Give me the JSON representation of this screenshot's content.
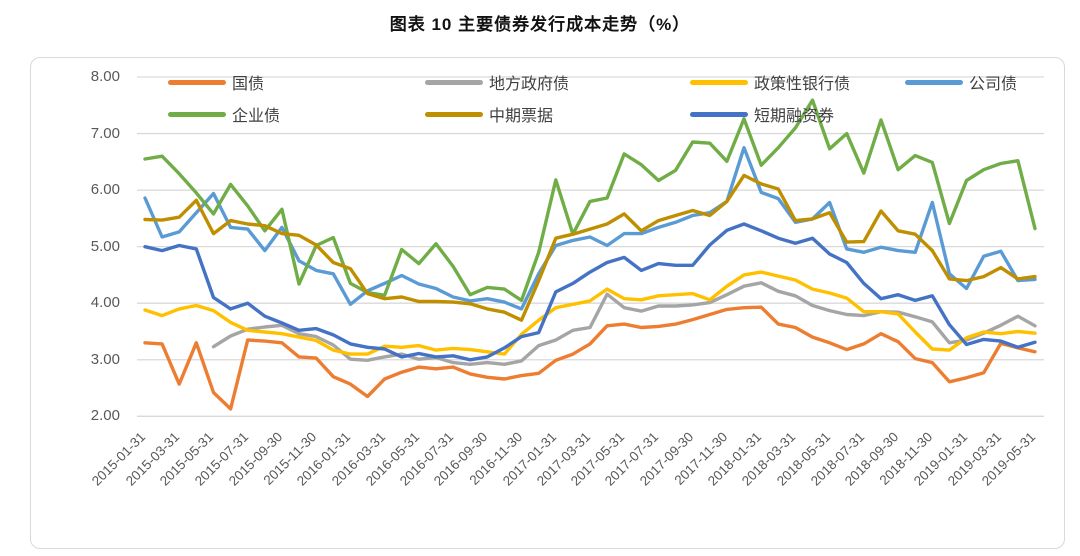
{
  "title": "图表 10 主要债券发行成本走势（%）",
  "legend": {
    "items": [
      {
        "label": "国债",
        "series_index": 0,
        "row": 0,
        "col": 0
      },
      {
        "label": "地方政府债",
        "series_index": 1,
        "row": 0,
        "col": 1
      },
      {
        "label": "政策性银行债",
        "series_index": 2,
        "row": 0,
        "col": 2
      },
      {
        "label": "公司债",
        "series_index": 3,
        "row": 0,
        "col": 3
      },
      {
        "label": "企业债",
        "series_index": 4,
        "row": 1,
        "col": 0
      },
      {
        "label": "中期票据",
        "series_index": 5,
        "row": 1,
        "col": 1
      },
      {
        "label": "短期融资券",
        "series_index": 6,
        "row": 1,
        "col": 2
      }
    ]
  },
  "axes": {
    "y_ticks": [
      "8.00",
      "7.00",
      "6.00",
      "5.00",
      "4.00",
      "3.00",
      "2.00"
    ],
    "y_range": [
      2,
      8
    ],
    "x_tick_labels": [
      "2015-01-31",
      "2015-03-31",
      "2015-05-31",
      "2015-07-31",
      "2015-09-30",
      "2015-11-30",
      "2016-01-31",
      "2016-03-31",
      "2016-05-31",
      "2016-07-31",
      "2016-09-30",
      "2016-11-30",
      "2017-01-31",
      "2017-03-31",
      "2017-05-31",
      "2017-07-31",
      "2017-09-30",
      "2017-11-30",
      "2018-01-31",
      "2018-03-31",
      "2018-05-31",
      "2018-07-31",
      "2018-09-30",
      "2018-11-30",
      "2019-01-31",
      "2019-03-31",
      "2019-05-31"
    ],
    "gridline_color": "#d9d9d9"
  },
  "chart_data": {
    "type": "line",
    "title": "图表 10 主要债券发行成本走势（%）",
    "ylim": [
      2,
      8
    ],
    "grid": "horizontal",
    "legend_position": "top",
    "x_months": [
      "2015-01",
      "2015-02",
      "2015-03",
      "2015-04",
      "2015-05",
      "2015-06",
      "2015-07",
      "2015-08",
      "2015-09",
      "2015-10",
      "2015-11",
      "2015-12",
      "2016-01",
      "2016-02",
      "2016-03",
      "2016-04",
      "2016-05",
      "2016-06",
      "2016-07",
      "2016-08",
      "2016-09",
      "2016-10",
      "2016-11",
      "2016-12",
      "2017-01",
      "2017-02",
      "2017-03",
      "2017-04",
      "2017-05",
      "2017-06",
      "2017-07",
      "2017-08",
      "2017-09",
      "2017-10",
      "2017-11",
      "2017-12",
      "2018-01",
      "2018-02",
      "2018-03",
      "2018-04",
      "2018-05",
      "2018-06",
      "2018-07",
      "2018-08",
      "2018-09",
      "2018-10",
      "2018-11",
      "2018-12",
      "2019-01",
      "2019-02",
      "2019-03",
      "2019-04",
      "2019-05"
    ],
    "series": [
      {
        "name": "国债",
        "color": "#ED7D31",
        "values": [
          3.3,
          3.28,
          2.57,
          3.3,
          2.42,
          2.13,
          3.35,
          3.33,
          3.3,
          3.05,
          3.03,
          2.7,
          2.57,
          2.35,
          2.66,
          2.78,
          2.87,
          2.84,
          2.87,
          2.75,
          2.69,
          2.66,
          2.72,
          2.76,
          2.99,
          3.1,
          3.28,
          3.6,
          3.63,
          3.57,
          3.59,
          3.63,
          3.71,
          3.8,
          3.89,
          3.92,
          3.93,
          3.63,
          3.57,
          3.4,
          3.3,
          3.18,
          3.28,
          3.46,
          3.32,
          3.02,
          2.95,
          2.61,
          2.68,
          2.77,
          3.29,
          3.21,
          3.14
        ]
      },
      {
        "name": "地方政府债",
        "color": "#A5A5A5",
        "values": [
          null,
          null,
          null,
          null,
          3.23,
          3.42,
          3.54,
          3.58,
          3.61,
          3.46,
          3.41,
          3.26,
          3.01,
          2.99,
          3.05,
          3.1,
          3.01,
          3.04,
          2.95,
          2.92,
          2.95,
          2.92,
          2.98,
          3.25,
          3.35,
          3.52,
          3.57,
          4.16,
          3.92,
          3.86,
          3.95,
          3.95,
          3.97,
          4.01,
          4.15,
          4.3,
          4.36,
          4.21,
          4.13,
          3.96,
          3.87,
          3.8,
          3.78,
          3.85,
          3.84,
          3.76,
          3.67,
          3.3,
          3.35,
          3.47,
          3.61,
          3.77,
          3.6
        ]
      },
      {
        "name": "政策性银行债",
        "color": "#FFC000",
        "values": [
          3.88,
          3.78,
          3.9,
          3.96,
          3.87,
          3.66,
          3.52,
          3.49,
          3.46,
          3.4,
          3.34,
          3.17,
          3.1,
          3.1,
          3.24,
          3.22,
          3.25,
          3.17,
          3.2,
          3.18,
          3.14,
          3.1,
          3.45,
          3.7,
          3.92,
          3.98,
          4.04,
          4.25,
          4.08,
          4.06,
          4.13,
          4.15,
          4.17,
          4.06,
          4.3,
          4.5,
          4.55,
          4.48,
          4.41,
          4.25,
          4.18,
          4.09,
          3.85,
          3.85,
          3.81,
          3.49,
          3.19,
          3.17,
          3.39,
          3.49,
          3.46,
          3.5,
          3.47
        ]
      },
      {
        "name": "公司债",
        "color": "#5B9BD5",
        "values": [
          5.86,
          5.17,
          5.26,
          5.6,
          5.94,
          5.34,
          5.31,
          4.93,
          5.34,
          4.75,
          4.58,
          4.52,
          3.98,
          4.22,
          4.35,
          4.49,
          4.34,
          4.26,
          4.11,
          4.04,
          4.08,
          4.02,
          3.9,
          4.52,
          5.02,
          5.11,
          5.17,
          5.02,
          5.23,
          5.23,
          5.34,
          5.43,
          5.55,
          5.6,
          5.8,
          6.75,
          5.96,
          5.85,
          5.43,
          5.49,
          5.78,
          4.96,
          4.9,
          4.99,
          4.93,
          4.9,
          5.78,
          4.52,
          4.26,
          4.83,
          4.92,
          4.4,
          4.42
        ]
      },
      {
        "name": "企业债",
        "color": "#70AD47",
        "values": [
          6.55,
          6.6,
          6.29,
          5.95,
          5.58,
          6.1,
          5.72,
          5.28,
          5.66,
          4.34,
          5.02,
          5.16,
          4.35,
          4.19,
          4.14,
          4.95,
          4.7,
          5.05,
          4.65,
          4.15,
          4.28,
          4.25,
          4.05,
          4.9,
          6.18,
          5.22,
          5.8,
          5.86,
          6.64,
          6.45,
          6.17,
          6.35,
          6.85,
          6.83,
          6.51,
          7.26,
          6.44,
          6.75,
          7.1,
          7.59,
          6.73,
          7.0,
          6.3,
          7.24,
          6.36,
          6.61,
          6.49,
          5.41,
          6.17,
          6.36,
          6.47,
          6.52,
          5.32
        ]
      },
      {
        "name": "中期票据",
        "color": "#BF8F00",
        "values": [
          5.48,
          5.47,
          5.52,
          5.82,
          5.23,
          5.46,
          5.4,
          5.37,
          5.23,
          5.2,
          5.03,
          4.72,
          4.61,
          4.17,
          4.08,
          4.11,
          4.03,
          4.03,
          4.02,
          3.99,
          3.9,
          3.84,
          3.7,
          4.4,
          5.15,
          5.22,
          5.31,
          5.4,
          5.58,
          5.28,
          5.46,
          5.55,
          5.64,
          5.55,
          5.8,
          6.26,
          6.11,
          6.02,
          5.46,
          5.49,
          5.6,
          5.08,
          5.09,
          5.63,
          5.28,
          5.22,
          4.93,
          4.43,
          4.4,
          4.47,
          4.63,
          4.43,
          4.47
        ]
      },
      {
        "name": "短期融资券",
        "color": "#4472C4",
        "values": [
          5.0,
          4.93,
          5.02,
          4.96,
          4.1,
          3.9,
          4.0,
          3.77,
          3.65,
          3.52,
          3.55,
          3.44,
          3.28,
          3.22,
          3.19,
          3.05,
          3.11,
          3.05,
          3.07,
          3.0,
          3.05,
          3.21,
          3.41,
          3.48,
          4.2,
          4.35,
          4.55,
          4.72,
          4.81,
          4.58,
          4.7,
          4.67,
          4.67,
          5.03,
          5.29,
          5.4,
          5.28,
          5.15,
          5.06,
          5.15,
          4.87,
          4.72,
          4.35,
          4.08,
          4.15,
          4.05,
          4.13,
          3.62,
          3.27,
          3.36,
          3.33,
          3.22,
          3.31
        ]
      }
    ]
  }
}
